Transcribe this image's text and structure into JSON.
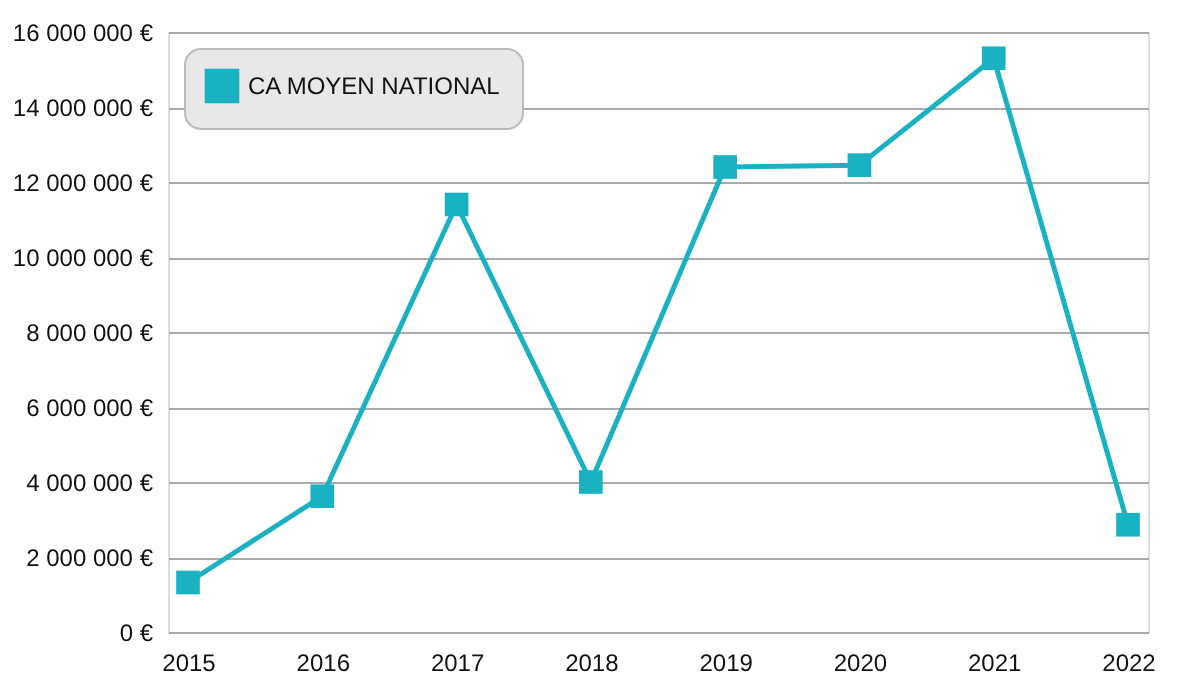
{
  "chart_data": {
    "type": "line",
    "categories": [
      "2015",
      "2016",
      "2017",
      "2018",
      "2019",
      "2020",
      "2021",
      "2022"
    ],
    "series": [
      {
        "name": "CA MOYEN NATIONAL",
        "color": "#1ab2c2",
        "values": [
          1320000,
          3620000,
          11400000,
          4000000,
          12400000,
          12450000,
          15300000,
          2860000
        ]
      }
    ],
    "ylim": [
      0,
      16000000
    ],
    "yticks": [
      {
        "value": 0,
        "label": "0 €"
      },
      {
        "value": 2000000,
        "label": "2 000 000 €"
      },
      {
        "value": 4000000,
        "label": "4 000 000 €"
      },
      {
        "value": 6000000,
        "label": "6 000 000 €"
      },
      {
        "value": 8000000,
        "label": "8 000 000 €"
      },
      {
        "value": 10000000,
        "label": "10 000 000 €"
      },
      {
        "value": 12000000,
        "label": "12 000 000 €"
      },
      {
        "value": 14000000,
        "label": "14 000 000 €"
      },
      {
        "value": 16000000,
        "label": "16 000 000 €"
      }
    ],
    "grid": "y",
    "legend": "top left",
    "marker": "square",
    "line_style": "solid"
  }
}
